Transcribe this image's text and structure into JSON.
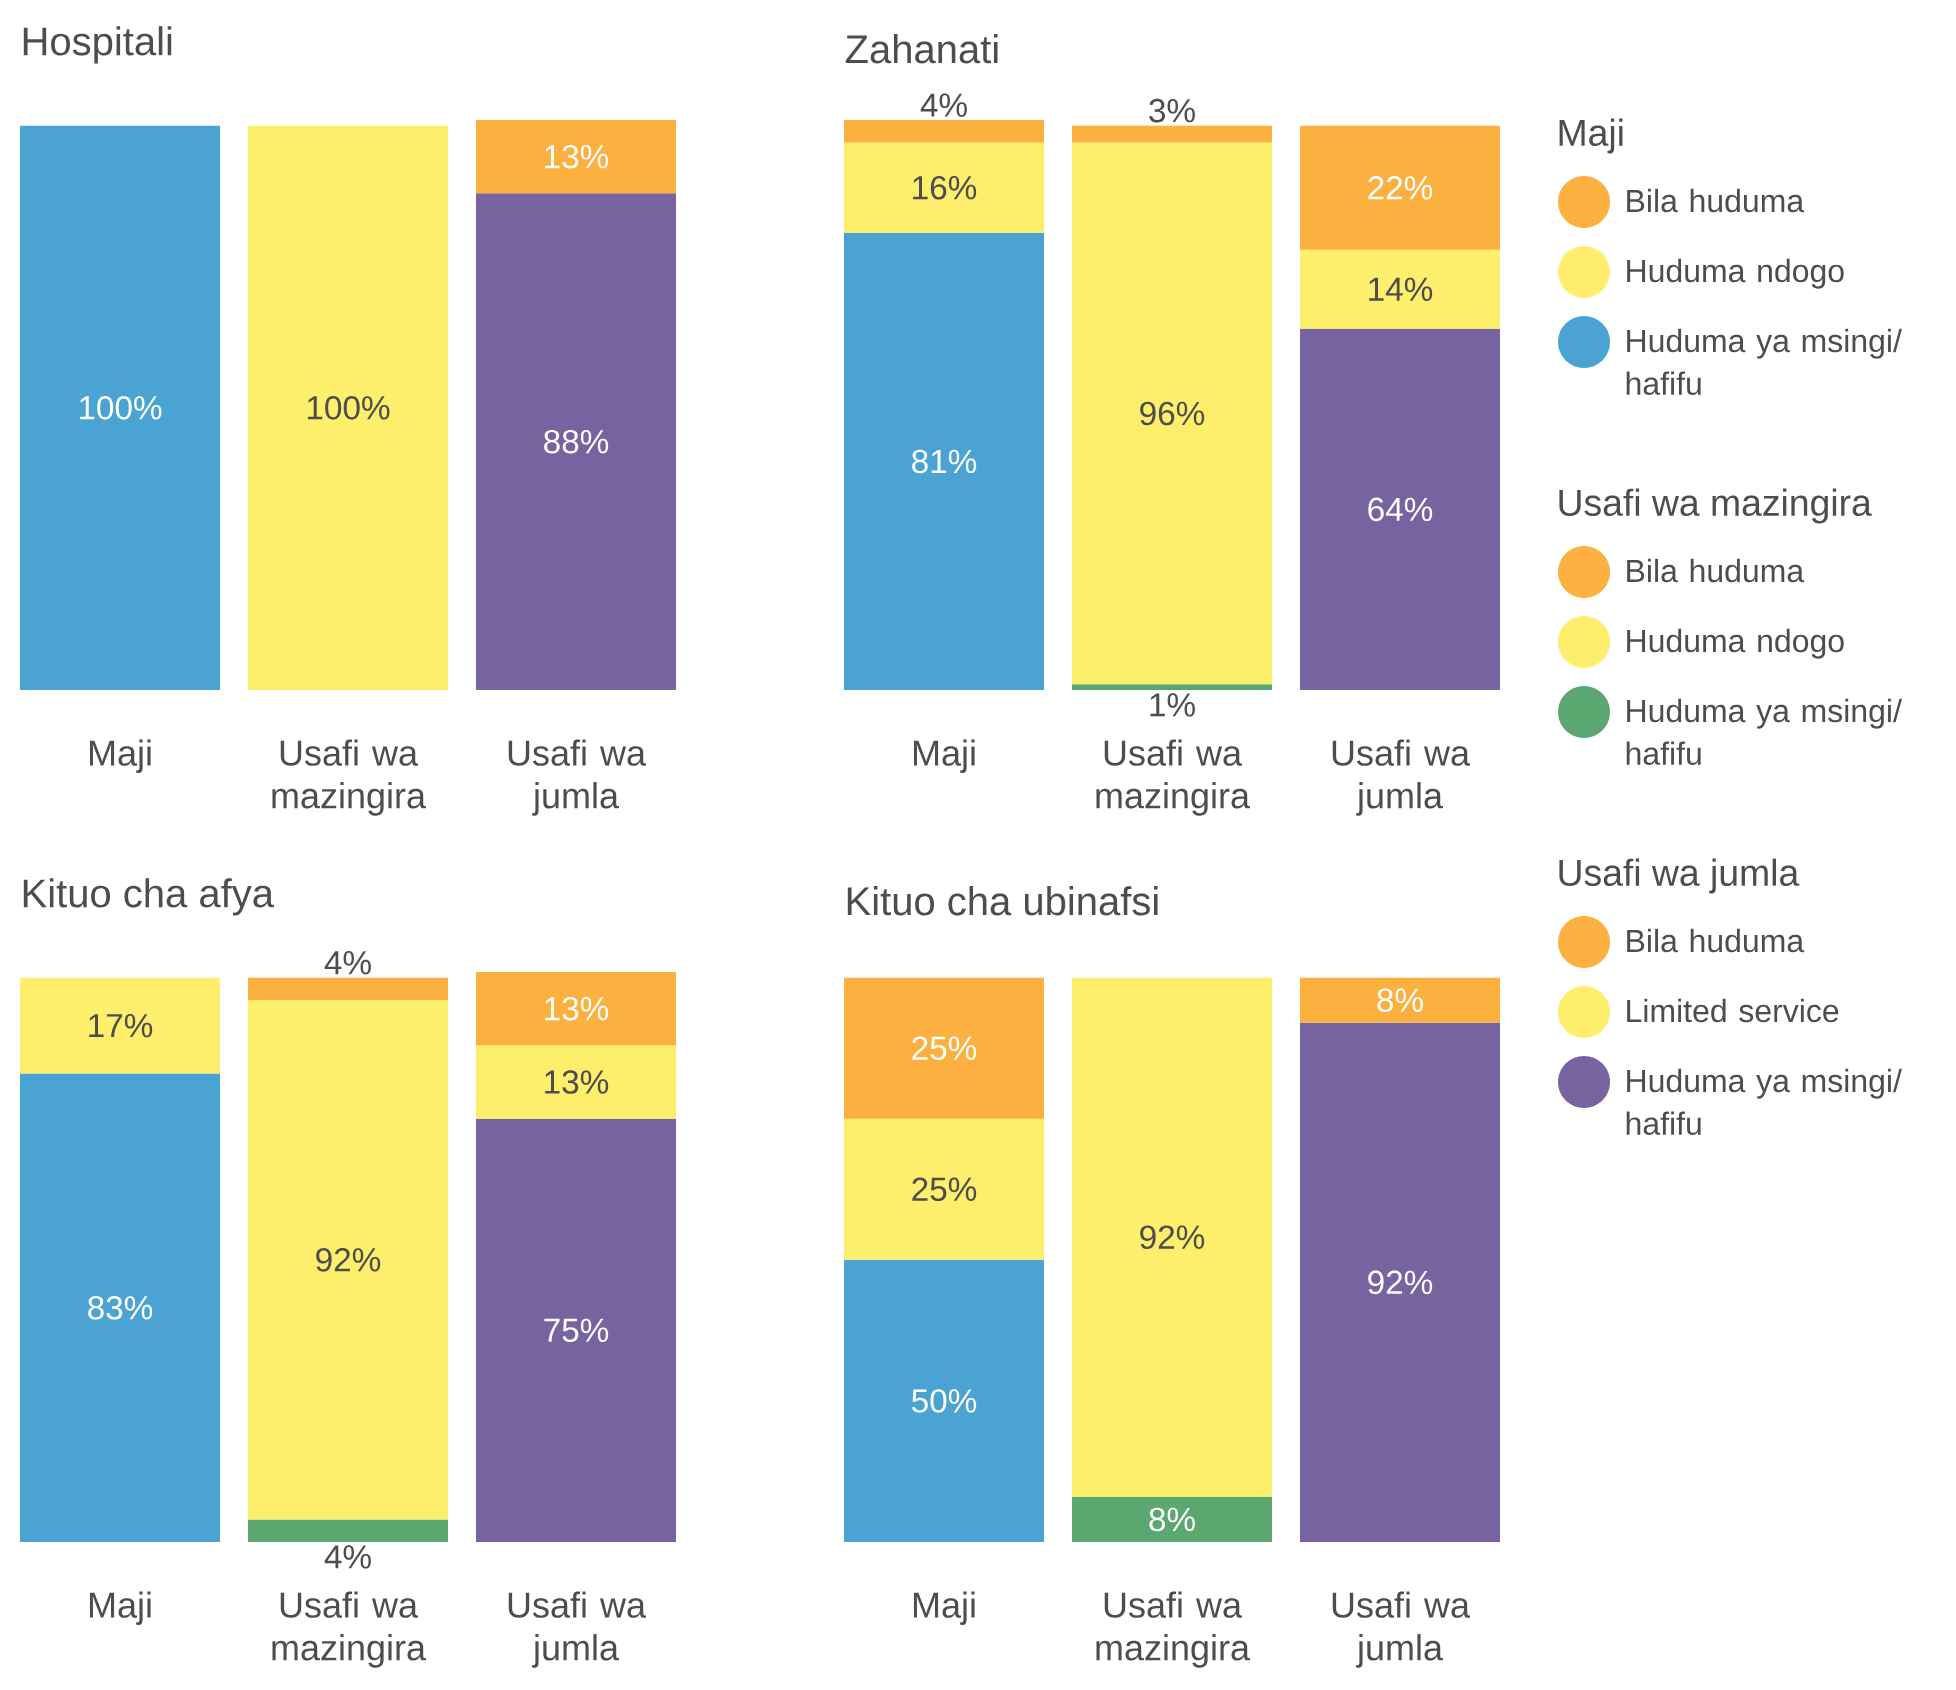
{
  "chart_data": [
    {
      "type": "bar",
      "title": "Hospitali",
      "categories": [
        "Maji",
        "Usafi wa mazingira",
        "Usafi wa jumla"
      ],
      "stacked": true,
      "ylim": [
        0,
        101
      ],
      "tick_labels": "x",
      "series": [
        {
          "color": "#4ba3d3",
          "values": [
            100,
            null,
            null
          ],
          "value_labels": [
            "100%",
            null,
            null
          ]
        },
        {
          "color": "#fdee6b",
          "values": [
            null,
            null,
            null
          ],
          "value_labels": [
            null,
            null,
            null
          ]
        },
        {
          "color": "#fbb040",
          "values": [
            null,
            null,
            null
          ],
          "value_labels": [
            null,
            null,
            null
          ]
        },
        {
          "color": "#5aa870",
          "values": [
            null,
            null,
            null
          ],
          "value_labels": [
            null,
            null,
            null
          ]
        },
        {
          "color": "#fdee6b",
          "values": [
            null,
            100,
            null
          ],
          "value_labels": [
            null,
            "100%",
            null
          ]
        },
        {
          "color": "#fbb040",
          "values": [
            null,
            null,
            null
          ],
          "value_labels": [
            null,
            null,
            null
          ]
        },
        {
          "color": "#77639f",
          "values": [
            null,
            null,
            88
          ],
          "value_labels": [
            null,
            null,
            "88%"
          ]
        },
        {
          "color": "#fdee6b",
          "values": [
            null,
            null,
            null
          ],
          "value_labels": [
            null,
            null,
            null
          ]
        },
        {
          "color": "#fbb040",
          "values": [
            null,
            null,
            13
          ],
          "value_labels": [
            null,
            null,
            "13%"
          ]
        }
      ]
    },
    {
      "type": "bar",
      "title": "Zahanati",
      "categories": [
        "Maji",
        "Usafi wa mazingira",
        "Usafi wa jumla"
      ],
      "stacked": true,
      "ylim": [
        0,
        101
      ],
      "tick_labels": "x",
      "legend": "right",
      "annotations": [
        "Maji",
        "Usafi wa mazingira",
        "Usafi wa jumla"
      ],
      "series": [
        {
          "name": "Huduma ya msingi/ hafifu",
          "color": "#4ba3d3",
          "values": [
            81,
            null,
            null
          ],
          "value_labels": [
            "81%",
            null,
            null
          ]
        },
        {
          "name": "Huduma ndogo",
          "color": "#fdee6b",
          "values": [
            16,
            null,
            null
          ],
          "value_labels": [
            "16%",
            null,
            null
          ]
        },
        {
          "name": "Bila huduma",
          "color": "#fbb040",
          "values": [
            4,
            null,
            null
          ],
          "value_labels": [
            "4%",
            null,
            null
          ]
        },
        {
          "name": "Huduma ya msingi/ hafifu",
          "color": "#5aa870",
          "values": [
            null,
            1,
            null
          ],
          "value_labels": [
            null,
            "1%",
            null
          ]
        },
        {
          "name": "Huduma ndogo",
          "color": "#fdee6b",
          "values": [
            null,
            96,
            null
          ],
          "value_labels": [
            null,
            "96%",
            null
          ]
        },
        {
          "name": "Bila huduma",
          "color": "#fbb040",
          "values": [
            null,
            3,
            null
          ],
          "value_labels": [
            null,
            "3%",
            null
          ]
        },
        {
          "name": "Huduma ya msingi/ hafifu",
          "color": "#77639f",
          "values": [
            null,
            null,
            64
          ],
          "value_labels": [
            null,
            null,
            "64%"
          ]
        },
        {
          "name": "Limited service",
          "color": "#fdee6b",
          "values": [
            null,
            null,
            14
          ],
          "value_labels": [
            null,
            null,
            "14%"
          ]
        },
        {
          "name": "Bila huduma",
          "color": "#fbb040",
          "values": [
            null,
            null,
            22
          ],
          "value_labels": [
            null,
            null,
            "22%"
          ]
        }
      ]
    },
    {
      "type": "bar",
      "title": "Kituo cha afya",
      "categories": [
        "Maji",
        "Usafi wa mazingira",
        "Usafi wa jumla"
      ],
      "stacked": true,
      "ylim": [
        0,
        101
      ],
      "tick_labels": "x",
      "series": [
        {
          "color": "#4ba3d3",
          "values": [
            83,
            null,
            null
          ],
          "value_labels": [
            "83%",
            null,
            null
          ]
        },
        {
          "color": "#fdee6b",
          "values": [
            17,
            null,
            null
          ],
          "value_labels": [
            "17%",
            null,
            null
          ]
        },
        {
          "color": "#fbb040",
          "values": [
            null,
            null,
            null
          ],
          "value_labels": [
            null,
            null,
            null
          ]
        },
        {
          "color": "#5aa870",
          "values": [
            null,
            4,
            null
          ],
          "value_labels": [
            null,
            "4%",
            null
          ]
        },
        {
          "color": "#fdee6b",
          "values": [
            null,
            92,
            null
          ],
          "value_labels": [
            null,
            "92%",
            null
          ]
        },
        {
          "color": "#fbb040",
          "values": [
            null,
            4,
            null
          ],
          "value_labels": [
            null,
            "4%",
            null
          ]
        },
        {
          "color": "#77639f",
          "values": [
            null,
            null,
            75
          ],
          "value_labels": [
            null,
            null,
            "75%"
          ]
        },
        {
          "color": "#fdee6b",
          "values": [
            null,
            null,
            13
          ],
          "value_labels": [
            null,
            null,
            "13%"
          ]
        },
        {
          "color": "#fbb040",
          "values": [
            null,
            null,
            13
          ],
          "value_labels": [
            null,
            null,
            "13%"
          ]
        }
      ]
    },
    {
      "type": "bar",
      "title": "Kituo cha ubinafsi",
      "categories": [
        "Maji",
        "Usafi wa mazingira",
        "Usafi wa jumla"
      ],
      "stacked": true,
      "ylim": [
        0,
        101
      ],
      "tick_labels": "x",
      "series": [
        {
          "color": "#4ba3d3",
          "values": [
            50,
            null,
            null
          ],
          "value_labels": [
            "50%",
            null,
            null
          ]
        },
        {
          "color": "#fdee6b",
          "values": [
            25,
            null,
            null
          ],
          "value_labels": [
            "25%",
            null,
            null
          ]
        },
        {
          "color": "#fbb040",
          "values": [
            25,
            null,
            null
          ],
          "value_labels": [
            "25%",
            null,
            null
          ]
        },
        {
          "color": "#5aa870",
          "values": [
            null,
            8,
            null
          ],
          "value_labels": [
            null,
            "8%",
            null
          ]
        },
        {
          "color": "#fdee6b",
          "values": [
            null,
            92,
            null
          ],
          "value_labels": [
            null,
            "92%",
            null
          ]
        },
        {
          "color": "#fbb040",
          "values": [
            null,
            null,
            null
          ],
          "value_labels": [
            null,
            null,
            null
          ]
        },
        {
          "color": "#77639f",
          "values": [
            null,
            null,
            92
          ],
          "value_labels": [
            null,
            null,
            "92%"
          ]
        },
        {
          "color": "#fdee6b",
          "values": [
            null,
            null,
            null
          ],
          "value_labels": [
            null,
            null,
            null
          ]
        },
        {
          "color": "#fbb040",
          "values": [
            null,
            null,
            8
          ],
          "value_labels": [
            null,
            null,
            "8%"
          ]
        }
      ]
    }
  ]
}
